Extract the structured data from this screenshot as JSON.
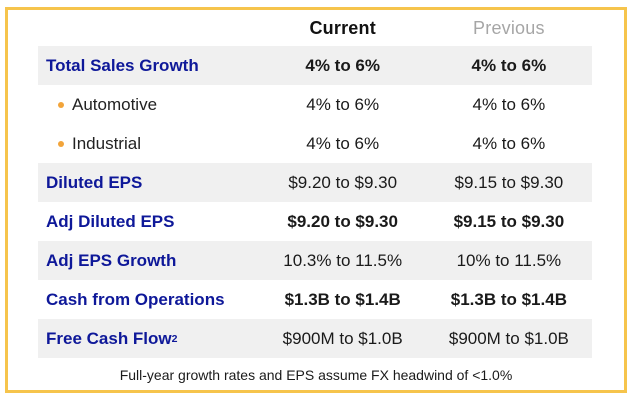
{
  "colors": {
    "border": "#F6C44C",
    "navy": "#0E1899",
    "stripe": "#F0F0F0",
    "muted": "#A6A6A6",
    "bullet": "#F2A43A"
  },
  "table": {
    "columns": [
      {
        "label": "Current"
      },
      {
        "label": "Previous"
      }
    ],
    "rows": [
      {
        "label": "Total Sales Growth",
        "sup": "",
        "current": "4% to 6%",
        "previous": "4% to 6%",
        "striped": true,
        "indent": false,
        "bold_values": true
      },
      {
        "label": "Automotive",
        "sup": "",
        "current": "4% to 6%",
        "previous": "4% to 6%",
        "striped": false,
        "indent": true,
        "bold_values": false
      },
      {
        "label": "Industrial",
        "sup": "",
        "current": "4% to 6%",
        "previous": "4% to 6%",
        "striped": false,
        "indent": true,
        "bold_values": false
      },
      {
        "label": "Diluted EPS",
        "sup": "",
        "current": "$9.20 to $9.30",
        "previous": "$9.15 to $9.30",
        "striped": true,
        "indent": false,
        "bold_values": false
      },
      {
        "label": "Adj Diluted EPS",
        "sup": "",
        "current": "$9.20 to $9.30",
        "previous": "$9.15 to $9.30",
        "striped": false,
        "indent": false,
        "bold_values": true
      },
      {
        "label": "Adj EPS Growth",
        "sup": "",
        "current": "10.3% to 11.5%",
        "previous": "10% to 11.5%",
        "striped": true,
        "indent": false,
        "bold_values": false
      },
      {
        "label": "Cash from Operations",
        "sup": "",
        "current": "$1.3B to $1.4B",
        "previous": "$1.3B to $1.4B",
        "striped": false,
        "indent": false,
        "bold_values": true
      },
      {
        "label": "Free Cash Flow",
        "sup": "2",
        "current": "$900M to $1.0B",
        "previous": "$900M to $1.0B",
        "striped": true,
        "indent": false,
        "bold_values": false
      }
    ]
  },
  "footnote": "Full-year growth rates and EPS assume FX headwind of <1.0%",
  "icons": {
    "bullet": "amber-dot"
  },
  "chart_data": {
    "type": "table",
    "columns": [
      "",
      "Current",
      "Previous"
    ],
    "rows": [
      [
        "Total Sales Growth",
        "4% to 6%",
        "4% to 6%"
      ],
      [
        "Automotive",
        "4% to 6%",
        "4% to 6%"
      ],
      [
        "Industrial",
        "4% to 6%",
        "4% to 6%"
      ],
      [
        "Diluted EPS",
        "$9.20 to $9.30",
        "$9.15 to $9.30"
      ],
      [
        "Adj Diluted EPS",
        "$9.20 to $9.30",
        "$9.15 to $9.30"
      ],
      [
        "Adj EPS Growth",
        "10.3% to 11.5%",
        "10% to 11.5%"
      ],
      [
        "Cash from Operations",
        "$1.3B to $1.4B",
        "$1.3B to $1.4B"
      ],
      [
        "Free Cash Flow²",
        "$900M to $1.0B",
        "$900M to $1.0B"
      ]
    ],
    "footnote": "Full-year growth rates and EPS assume FX headwind of <1.0%",
    "legend_position": "none",
    "grid": false
  }
}
